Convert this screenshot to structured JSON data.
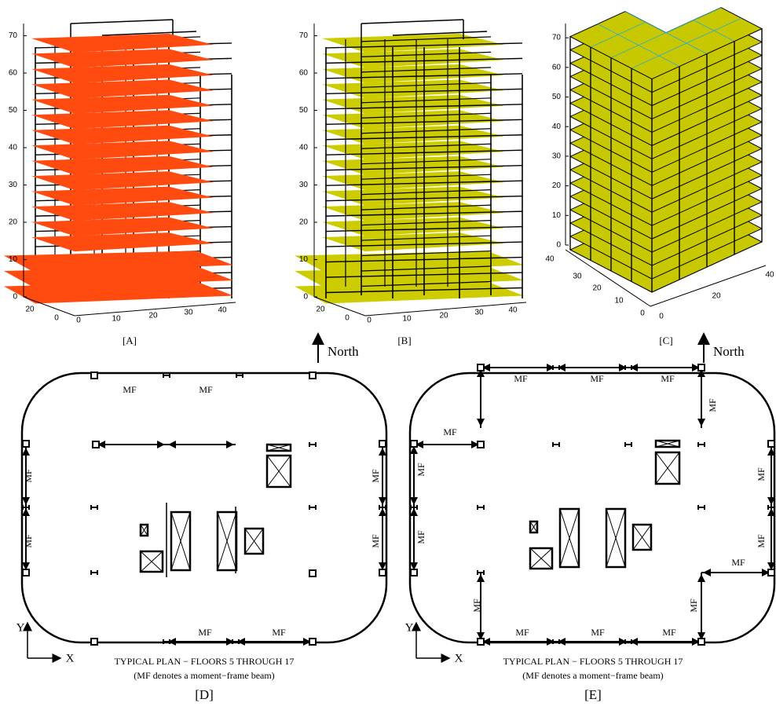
{
  "panels": [
    {
      "label": "[A]",
      "z_ticks": [
        0,
        10,
        20,
        30,
        40,
        50,
        60,
        70
      ],
      "y_ticks": [
        20,
        0
      ],
      "x_ticks": [
        0,
        10,
        20,
        30,
        40
      ]
    },
    {
      "label": "[B]",
      "z_ticks": [
        0,
        10,
        20,
        30,
        40,
        50,
        60,
        70
      ],
      "y_ticks": [
        20,
        0
      ],
      "x_ticks": [
        0,
        10,
        20,
        30,
        40
      ]
    },
    {
      "label": "[C]",
      "z_ticks": [
        0,
        10,
        20,
        30,
        40,
        50,
        60,
        70
      ],
      "y_ticks": [
        40,
        30,
        20,
        10,
        0
      ],
      "x_ticks": [
        0,
        20,
        40
      ]
    }
  ],
  "north": [
    "North",
    "North"
  ],
  "plans": [
    {
      "label": "[D]",
      "caption": "TYPICAL PLAN − FLOORS 5 THROUGH 17",
      "note": "(MF denotes a moment−frame beam)",
      "axis_x": "X",
      "axis_y": "Y",
      "mf_labels": [
        "MF",
        "MF",
        "MF",
        "MF",
        "MF",
        "MF",
        "MF",
        "MF"
      ]
    },
    {
      "label": "[E]",
      "caption": "TYPICAL PLAN − FLOORS 5 THROUGH 17",
      "note": "(MF denotes a moment−frame beam)",
      "axis_x": "X",
      "axis_y": "Y",
      "mf_labels": [
        "MF",
        "MF",
        "MF",
        "MF",
        "MF",
        "MF",
        "MF",
        "MF",
        "MF",
        "MF",
        "MF",
        "MF",
        "MF",
        "MF",
        "MF"
      ]
    }
  ]
}
